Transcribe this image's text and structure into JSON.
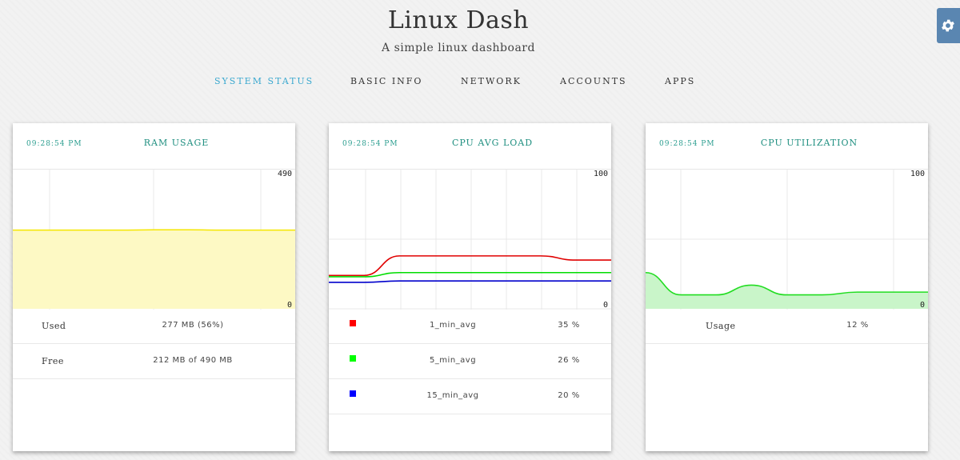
{
  "header": {
    "title": "Linux Dash",
    "subtitle": "A simple linux dashboard",
    "settings_icon": "gear-icon"
  },
  "nav": [
    {
      "label": "SYSTEM STATUS",
      "active": true
    },
    {
      "label": "BASIC INFO",
      "active": false
    },
    {
      "label": "NETWORK",
      "active": false
    },
    {
      "label": "ACCOUNTS",
      "active": false
    },
    {
      "label": "APPS",
      "active": false
    }
  ],
  "cards": {
    "ram": {
      "time": "09:28:54 PM",
      "title": "RAM USAGE",
      "axis_max": "490",
      "axis_min": "0",
      "rows": [
        {
          "label": "Used",
          "value": "277 MB (56%)"
        },
        {
          "label": "Free",
          "value": "212 MB of 490 MB"
        }
      ]
    },
    "cpu_load": {
      "time": "09:28:54 PM",
      "title": "CPU AVG LOAD",
      "axis_max": "100",
      "axis_min": "0",
      "rows": [
        {
          "name": "1_min_avg",
          "value": "35 %",
          "color": "#ff0000"
        },
        {
          "name": "5_min_avg",
          "value": "26 %",
          "color": "#00ff00"
        },
        {
          "name": "15_min_avg",
          "value": "20 %",
          "color": "#0000ff"
        }
      ]
    },
    "cpu_util": {
      "time": "09:28:54 PM",
      "title": "CPU UTILIZATION",
      "axis_max": "100",
      "axis_min": "0",
      "rows": [
        {
          "label": "Usage",
          "value": "12 %"
        }
      ]
    }
  },
  "chart_data": [
    {
      "type": "area",
      "ylim": [
        0,
        490
      ],
      "x": [
        0,
        1,
        2,
        3,
        4,
        5,
        6,
        7,
        8
      ],
      "values": [
        277,
        277,
        277,
        277,
        278,
        278,
        277,
        277,
        277
      ],
      "color": "#f5e600"
    },
    {
      "type": "line",
      "ylim": [
        0,
        100
      ],
      "x": [
        0,
        1,
        2,
        3,
        4,
        5,
        6,
        7,
        8
      ],
      "series": [
        {
          "name": "1_min_avg",
          "color": "#e00000",
          "values": [
            24,
            24,
            38,
            38,
            38,
            38,
            38,
            35,
            35
          ]
        },
        {
          "name": "5_min_avg",
          "color": "#00dd00",
          "values": [
            23,
            23,
            26,
            26,
            26,
            26,
            26,
            26,
            26
          ]
        },
        {
          "name": "15_min_avg",
          "color": "#0000cc",
          "values": [
            19,
            19,
            20,
            20,
            20,
            20,
            20,
            20,
            20
          ]
        }
      ]
    },
    {
      "type": "area",
      "ylim": [
        0,
        100
      ],
      "x": [
        0,
        1,
        2,
        3,
        4,
        5,
        6,
        7,
        8
      ],
      "values": [
        26,
        10,
        10,
        17,
        10,
        10,
        12,
        12,
        12
      ],
      "color": "#22dd22"
    }
  ]
}
